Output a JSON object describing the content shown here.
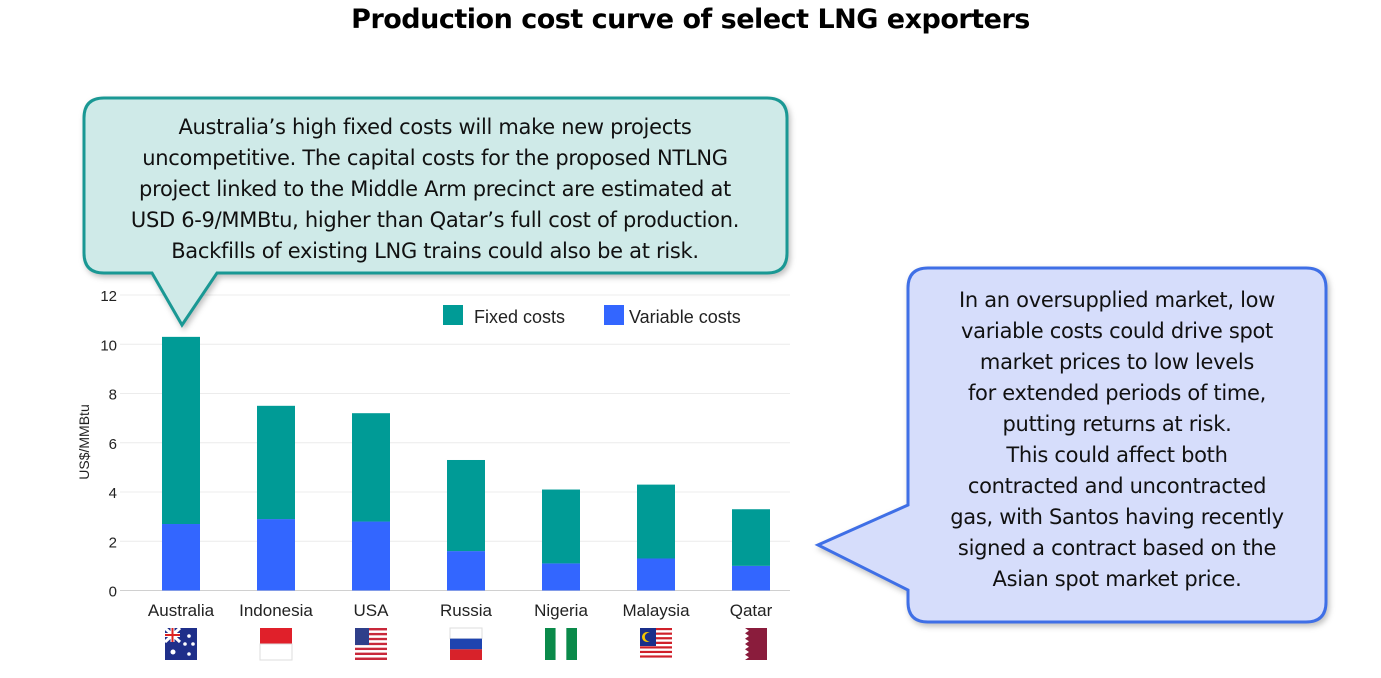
{
  "title": "Production cost curve of select LNG exporters",
  "callouts": {
    "left": [
      "Australia’s high fixed costs will make new projects",
      "uncompetitive. The capital costs for the proposed NTLNG",
      "project linked to the Middle Arm precinct are estimated at",
      "USD 6-9/MMBtu, higher than Qatar’s full cost of production.",
      "Backfills of existing LNG trains could also be at risk."
    ],
    "right": [
      "In an oversupplied market, low",
      "variable costs could drive spot",
      "market prices to low levels",
      "for extended periods of time,",
      "putting returns at risk.",
      "This could affect both",
      "contracted and uncontracted",
      "gas, with Santos having recently",
      "signed a contract based on the",
      "Asian spot market price."
    ],
    "colors": {
      "left_fill": "#cfeae8",
      "left_border": "#1a9894",
      "right_fill": "#d6ddfb",
      "right_border": "#3f6fe6"
    }
  },
  "chart_data": {
    "type": "bar",
    "stacked": true,
    "title": "Production cost curve of select LNG exporters",
    "xlabel": "",
    "ylabel": "US$/MMBtu",
    "ylim": [
      0,
      12
    ],
    "yticks": [
      0,
      2,
      4,
      6,
      8,
      10,
      12
    ],
    "grid": true,
    "legend_position": "top-right",
    "categories": [
      "Australia",
      "Indonesia",
      "USA",
      "Russia",
      "Nigeria",
      "Malaysia",
      "Qatar"
    ],
    "flags": [
      "australia-flag",
      "indonesia-flag",
      "usa-flag",
      "russia-flag",
      "nigeria-flag",
      "malaysia-flag",
      "qatar-flag"
    ],
    "series": [
      {
        "name": "Variable costs",
        "color": "#3366ff",
        "values": [
          2.7,
          2.9,
          2.8,
          1.6,
          1.1,
          1.3,
          1.0
        ]
      },
      {
        "name": "Fixed costs",
        "color": "#009b96",
        "values": [
          7.6,
          4.6,
          4.4,
          3.7,
          3.0,
          3.0,
          2.3
        ]
      }
    ],
    "legend_order": [
      "Fixed costs",
      "Variable costs"
    ]
  }
}
